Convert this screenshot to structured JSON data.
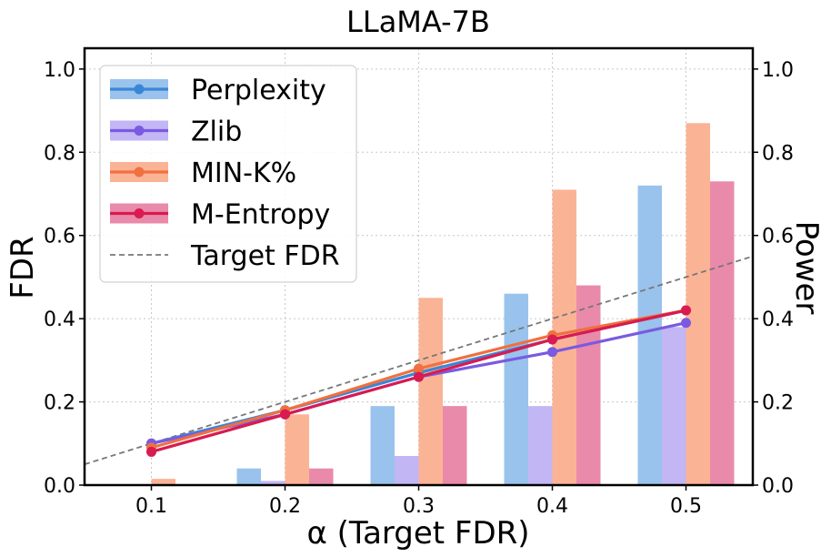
{
  "chart_data": {
    "type": "bar+line (dual axis)",
    "title": "LLaMA-7B",
    "xlabel": "α (Target FDR)",
    "ylabel_left": "FDR",
    "ylabel_right": "Power",
    "categories": [
      "0.1",
      "0.2",
      "0.3",
      "0.4",
      "0.5"
    ],
    "x": [
      0.1,
      0.2,
      0.3,
      0.4,
      0.5
    ],
    "xlim": [
      0.05,
      0.55
    ],
    "ylim": [
      0,
      1.05
    ],
    "yticks": [
      "0.0",
      "0.2",
      "0.4",
      "0.6",
      "0.8",
      "1.0"
    ],
    "grid": true,
    "legend_position": "top-left",
    "series": [
      {
        "name": "Perplexity",
        "color": "#3a86d6",
        "bar_color": "#99c3ec",
        "fdr": [
          0.1,
          0.18,
          0.27,
          0.35,
          0.42
        ],
        "power": [
          0.0,
          0.04,
          0.19,
          0.46,
          0.72
        ]
      },
      {
        "name": "Zlib",
        "color": "#7a5ae0",
        "bar_color": "#c2b6f4",
        "fdr": [
          0.1,
          0.17,
          0.26,
          0.32,
          0.39
        ],
        "power": [
          0.0,
          0.01,
          0.07,
          0.19,
          0.38
        ]
      },
      {
        "name": "MIN-K%",
        "color": "#f07040",
        "bar_color": "#fbb396",
        "fdr": [
          0.09,
          0.18,
          0.28,
          0.36,
          0.42
        ],
        "power": [
          0.015,
          0.17,
          0.45,
          0.71,
          0.87
        ]
      },
      {
        "name": "M-Entropy",
        "color": "#d81b50",
        "bar_color": "#e98aaa",
        "fdr": [
          0.08,
          0.17,
          0.26,
          0.35,
          0.42
        ],
        "power": [
          0.0,
          0.04,
          0.19,
          0.48,
          0.73
        ]
      }
    ],
    "reference_line": {
      "name": "Target FDR",
      "color": "#777777",
      "x": [
        0.05,
        0.55
      ],
      "y": [
        0.05,
        0.55
      ]
    }
  }
}
